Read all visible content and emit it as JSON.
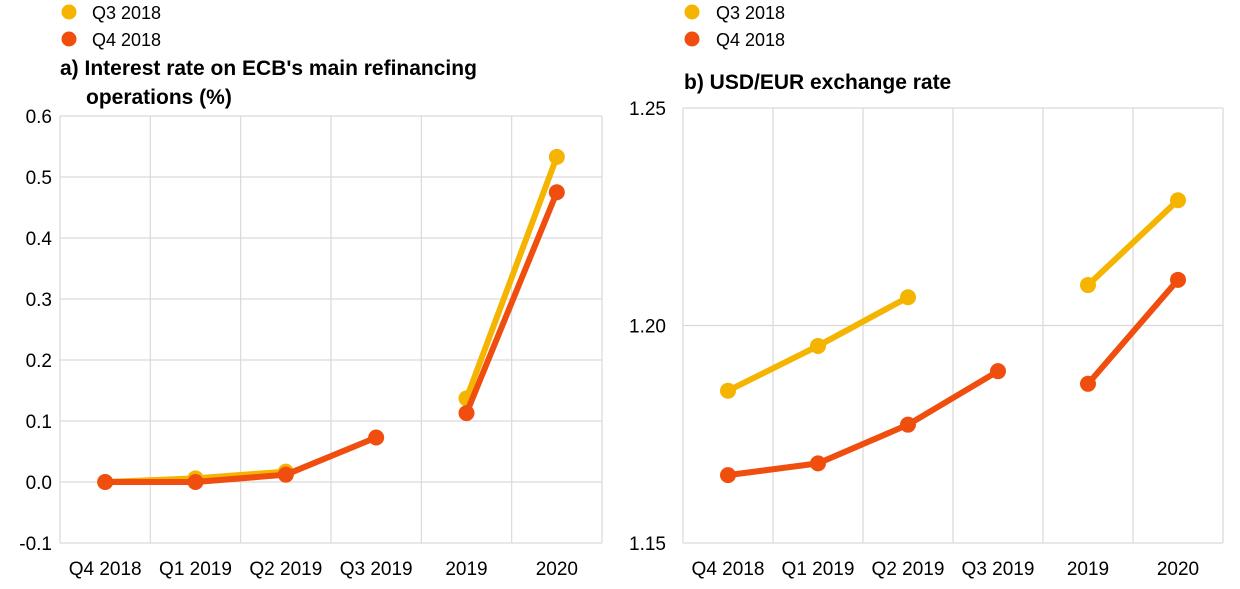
{
  "chart_data": [
    {
      "type": "line",
      "title_line1": "a) Interest rate on ECB's main refinancing",
      "title_line2": "operations (%)",
      "xlabel": "",
      "ylabel": "",
      "categories": [
        "Q4 2018",
        "Q1 2019",
        "Q2 2019",
        "Q3 2019",
        "2019",
        "2020"
      ],
      "y_ticks": [
        "-0.1",
        "0.0",
        "0.1",
        "0.2",
        "0.3",
        "0.4",
        "0.5",
        "0.6"
      ],
      "ylim": [
        -0.1,
        0.6
      ],
      "grid": true,
      "legend_position": "top-left",
      "series": [
        {
          "name": "Q3 2018",
          "color": "#f5b400",
          "segments": [
            [
              [
                0,
                0.0
              ],
              [
                1,
                0.006
              ],
              [
                2,
                0.017
              ]
            ],
            [
              [
                4,
                0.137
              ],
              [
                5,
                0.533
              ]
            ]
          ]
        },
        {
          "name": "Q4 2018",
          "color": "#f04e0f",
          "segments": [
            [
              [
                0,
                0.0
              ],
              [
                1,
                0.0
              ],
              [
                2,
                0.012
              ],
              [
                3,
                0.073
              ]
            ],
            [
              [
                4,
                0.113
              ],
              [
                5,
                0.475
              ]
            ]
          ]
        }
      ]
    },
    {
      "type": "line",
      "title_line1": "b) USD/EUR exchange rate",
      "title_line2": "",
      "xlabel": "",
      "ylabel": "",
      "categories": [
        "Q4 2018",
        "Q1 2019",
        "Q2 2019",
        "Q3 2019",
        "2019",
        "2020"
      ],
      "y_ticks": [
        "1.15",
        "1.20",
        "1.25"
      ],
      "ylim": [
        1.15,
        1.25
      ],
      "grid": true,
      "legend_position": "top-left",
      "series": [
        {
          "name": "Q3 2018",
          "color": "#f5b400",
          "segments": [
            [
              [
                0,
                1.185
              ],
              [
                1,
                1.1953
              ],
              [
                2,
                1.2065
              ]
            ],
            [
              [
                4,
                1.2093
              ],
              [
                5,
                1.2288
              ]
            ]
          ]
        },
        {
          "name": "Q4 2018",
          "color": "#f04e0f",
          "segments": [
            [
              [
                0,
                1.1656
              ],
              [
                1,
                1.1683
              ],
              [
                2,
                1.1772
              ],
              [
                3,
                1.1895
              ]
            ],
            [
              [
                4,
                1.1866
              ],
              [
                5,
                1.2105
              ]
            ]
          ]
        }
      ]
    }
  ]
}
